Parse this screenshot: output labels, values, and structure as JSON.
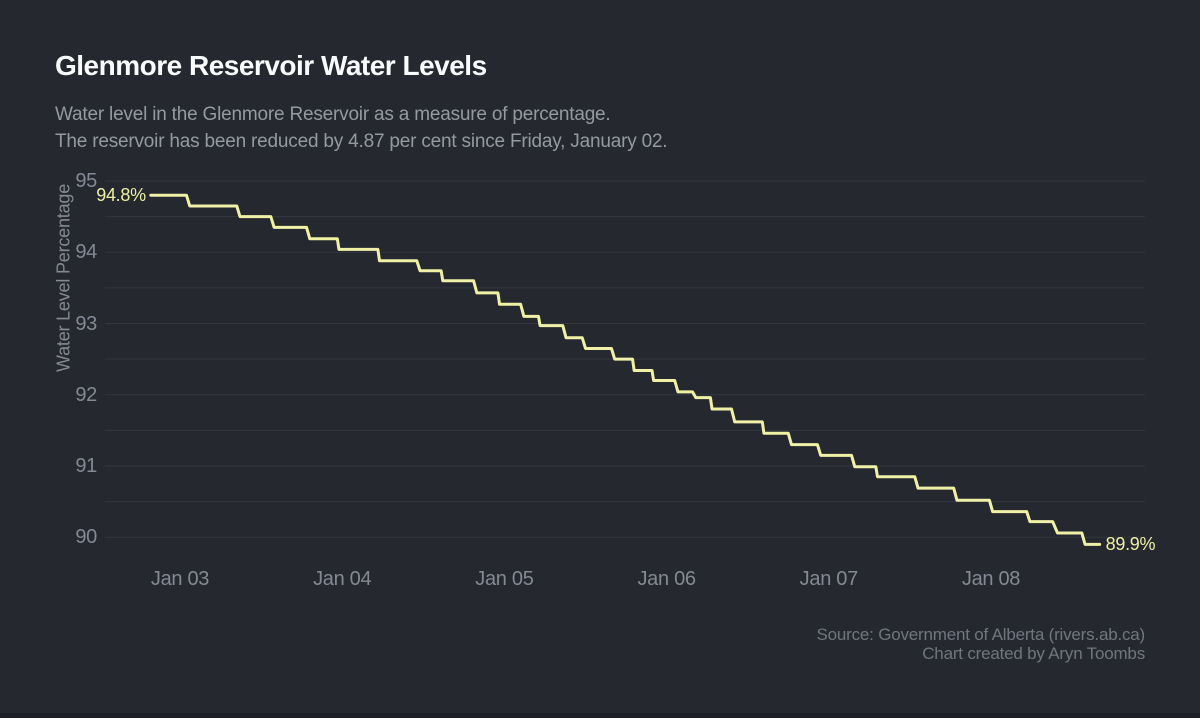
{
  "colors": {
    "background": "#25282f",
    "title_text": "#fbfcfd",
    "subtitle_text": "#9499a2",
    "tick_text": "#848994",
    "gridline": "#32363f",
    "line": "#f0f1a7",
    "annotation_text": "#eef0a4",
    "source_text": "#70767f",
    "bottom_edge": "#1d2027"
  },
  "chart_data": {
    "type": "line",
    "line_style": "step",
    "title": "Glenmore Reservoir Water Levels",
    "subtitle": [
      "Water level in the Glenmore Reservoir as a measure of percentage.",
      "The reservoir has been reduced by 4.87 per cent since Friday, January 02."
    ],
    "source": "Source: Government of Alberta (rivers.ab.ca)",
    "credit": "Chart created by Aryn Toombs",
    "ylabel": "Water Level Percentage",
    "xlabel": "",
    "legend": "none",
    "grid": "horizontal lines every 0.5 units",
    "ylim": [
      89.72,
      95.12
    ],
    "grid_step": 0.5,
    "yticks": [
      95,
      94,
      93,
      92,
      91,
      90
    ],
    "xticks": [
      {
        "label": "Jan 03",
        "day": 0
      },
      {
        "label": "Jan 04",
        "day": 1
      },
      {
        "label": "Jan 05",
        "day": 2
      },
      {
        "label": "Jan 06",
        "day": 3
      },
      {
        "label": "Jan 07",
        "day": 4
      },
      {
        "label": "Jan 08",
        "day": 5
      }
    ],
    "x_range_days": [
      -0.18,
      5.67
    ],
    "annotations": [
      {
        "text": "94.8%",
        "t": -0.18,
        "v": 94.8,
        "side": "left"
      },
      {
        "text": "89.9%",
        "t": 5.67,
        "v": 89.9,
        "side": "right"
      }
    ],
    "series": [
      {
        "name": "Glenmore Reservoir water level (% full)",
        "points": [
          [
            -0.18,
            94.8
          ],
          [
            0.04,
            94.8
          ],
          [
            0.06,
            94.65
          ],
          [
            0.35,
            94.65
          ],
          [
            0.37,
            94.5
          ],
          [
            0.56,
            94.5
          ],
          [
            0.58,
            94.35
          ],
          [
            0.78,
            94.35
          ],
          [
            0.8,
            94.19
          ],
          [
            0.97,
            94.19
          ],
          [
            0.98,
            94.04
          ],
          [
            1.22,
            94.04
          ],
          [
            1.23,
            93.88
          ],
          [
            1.46,
            93.88
          ],
          [
            1.48,
            93.74
          ],
          [
            1.61,
            93.74
          ],
          [
            1.62,
            93.6
          ],
          [
            1.81,
            93.6
          ],
          [
            1.83,
            93.43
          ],
          [
            1.96,
            93.43
          ],
          [
            1.97,
            93.27
          ],
          [
            2.1,
            93.27
          ],
          [
            2.12,
            93.1
          ],
          [
            2.21,
            93.1
          ],
          [
            2.22,
            92.97
          ],
          [
            2.36,
            92.97
          ],
          [
            2.38,
            92.8
          ],
          [
            2.48,
            92.8
          ],
          [
            2.5,
            92.65
          ],
          [
            2.66,
            92.65
          ],
          [
            2.68,
            92.5
          ],
          [
            2.79,
            92.5
          ],
          [
            2.8,
            92.34
          ],
          [
            2.91,
            92.34
          ],
          [
            2.92,
            92.2
          ],
          [
            3.05,
            92.2
          ],
          [
            3.07,
            92.04
          ],
          [
            3.16,
            92.04
          ],
          [
            3.18,
            91.96
          ],
          [
            3.27,
            91.96
          ],
          [
            3.28,
            91.8
          ],
          [
            3.4,
            91.8
          ],
          [
            3.42,
            91.62
          ],
          [
            3.59,
            91.62
          ],
          [
            3.6,
            91.46
          ],
          [
            3.75,
            91.46
          ],
          [
            3.77,
            91.3
          ],
          [
            3.93,
            91.3
          ],
          [
            3.95,
            91.15
          ],
          [
            4.14,
            91.15
          ],
          [
            4.16,
            90.99
          ],
          [
            4.29,
            90.99
          ],
          [
            4.3,
            90.85
          ],
          [
            4.53,
            90.85
          ],
          [
            4.55,
            90.69
          ],
          [
            4.77,
            90.69
          ],
          [
            4.79,
            90.52
          ],
          [
            4.99,
            90.52
          ],
          [
            5.01,
            90.36
          ],
          [
            5.22,
            90.36
          ],
          [
            5.24,
            90.22
          ],
          [
            5.38,
            90.22
          ],
          [
            5.41,
            90.06
          ],
          [
            5.56,
            90.06
          ],
          [
            5.58,
            89.9
          ],
          [
            5.67,
            89.9
          ]
        ]
      }
    ]
  }
}
